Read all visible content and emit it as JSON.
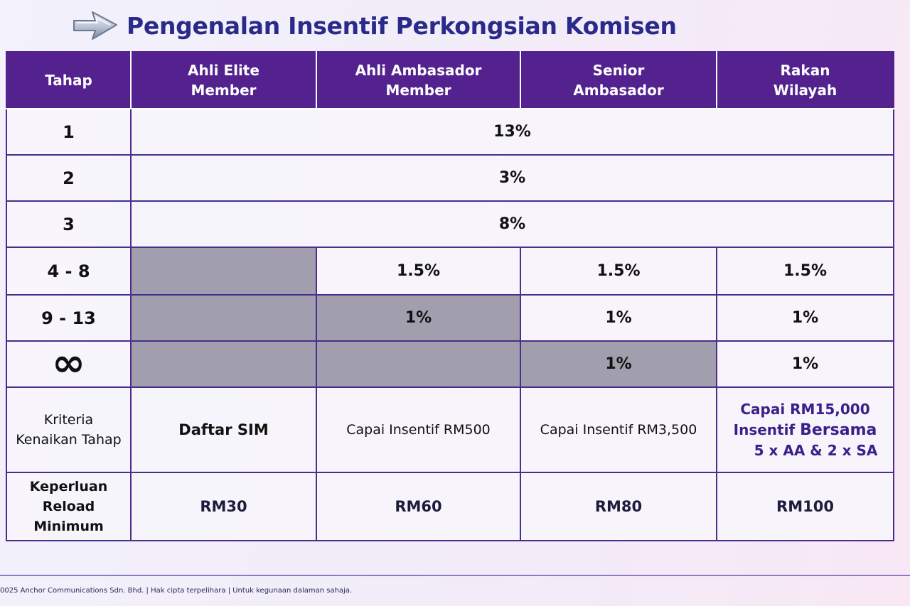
{
  "title": "Pengenalan Insentif Perkongsian Komisen",
  "icons": {
    "title_arrow": "arrow-right-icon"
  },
  "colors": {
    "header_bg": "#53228f",
    "border": "#4a2c8c",
    "title": "#2a2a8a",
    "disabled_cell": "#a19eae"
  },
  "table": {
    "headers": [
      "Tahap",
      "Ahli Elite\nMember",
      "Ahli Ambasador\nMember",
      "Senior\nAmbasador",
      "Rakan\nWilayah"
    ],
    "rows": [
      {
        "stage": "1",
        "rate": "13%"
      },
      {
        "stage": "2",
        "rate": "3%"
      },
      {
        "stage": "3",
        "rate": "8%"
      },
      {
        "stage": "4 - 8",
        "cells": [
          "",
          "1.5%",
          "1.5%",
          "1.5%"
        ]
      },
      {
        "stage": "9 - 13",
        "cells": [
          "",
          "1%",
          "1%",
          "1%"
        ]
      },
      {
        "stage": "∞",
        "cells": [
          "",
          "",
          "1%",
          "1%"
        ]
      }
    ],
    "criteria": {
      "label": "Kriteria\nKenaikan Tahap",
      "cells": [
        "Daftar SIM",
        "Capai Insentif RM500",
        "Capai Insentif RM3,500"
      ],
      "wilayah_line1": "Capai RM15,000",
      "wilayah_line2_prefix": "Insentif ",
      "wilayah_line2_bold": "Bersama",
      "wilayah_line3": "5 x AA & 2 x SA"
    },
    "reload": {
      "label": "Keperluan\nReload Minimum",
      "cells": [
        "RM30",
        "RM60",
        "RM80",
        "RM100"
      ]
    }
  },
  "footer": "0025 Anchor Communications Sdn. Bhd. | Hak cipta terpelihara | Untuk kegunaan dalaman sahaja."
}
